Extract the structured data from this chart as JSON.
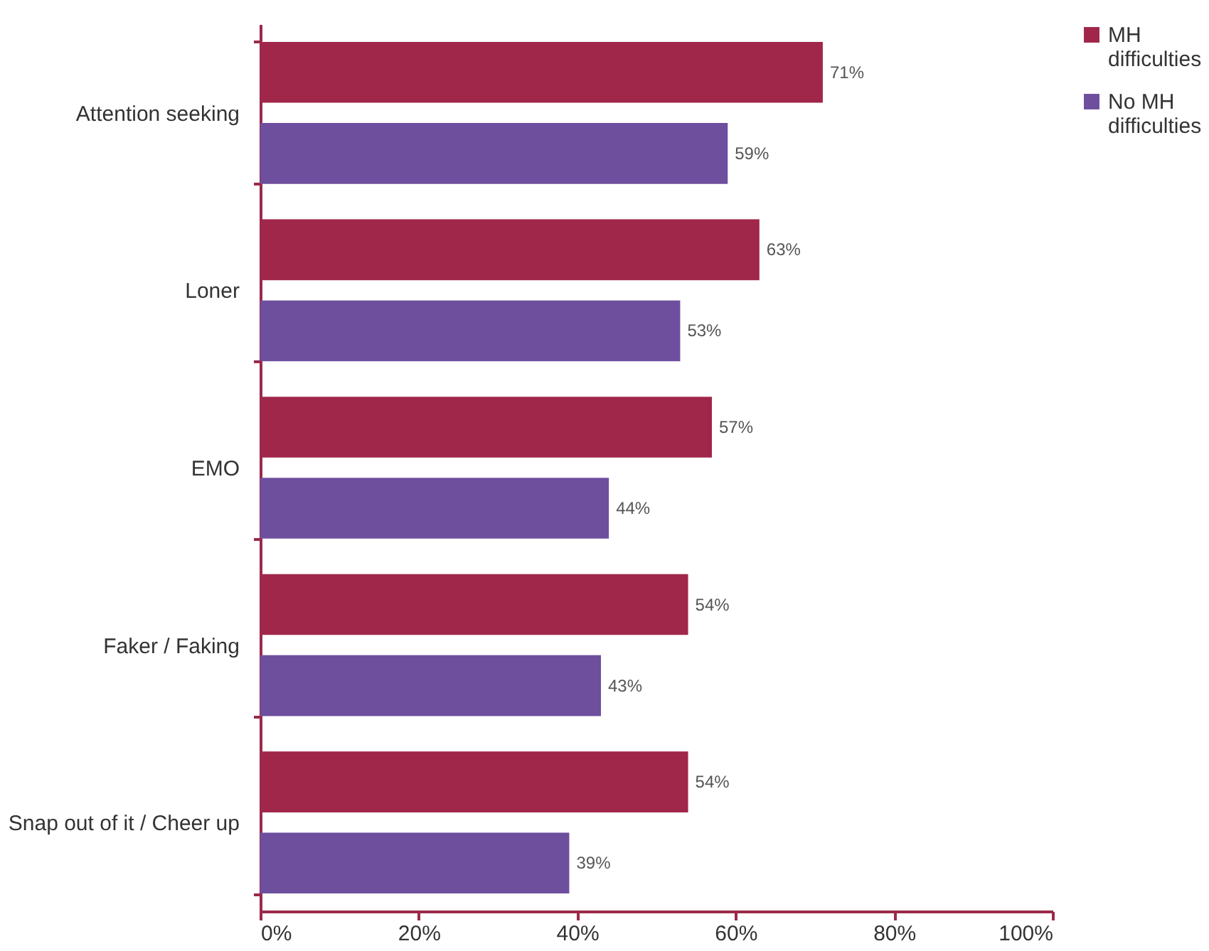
{
  "chart_data": {
    "type": "bar",
    "orientation": "horizontal",
    "categories": [
      "Attention seeking",
      "Loner",
      "EMO",
      "Faker / Faking",
      "Snap out of it / Cheer up"
    ],
    "series": [
      {
        "name": "MH difficulties",
        "color": "#a0264a",
        "values": [
          71,
          63,
          57,
          54,
          54
        ],
        "value_labels": [
          "71%",
          "63%",
          "57%",
          "54%",
          "54%"
        ]
      },
      {
        "name": "No MH difficulties",
        "color": "#6e4f9e",
        "values": [
          59,
          53,
          44,
          43,
          39
        ],
        "value_labels": [
          "59%",
          "53%",
          "44%",
          "43%",
          "39%"
        ]
      }
    ],
    "xlim": [
      0,
      100
    ],
    "xticks": [
      {
        "value": 0,
        "label": "0%"
      },
      {
        "value": 20,
        "label": "20%"
      },
      {
        "value": 40,
        "label": "40%"
      },
      {
        "value": 60,
        "label": "60%"
      },
      {
        "value": 80,
        "label": "80%"
      },
      {
        "value": 100,
        "label": "100%"
      }
    ],
    "grid": false,
    "legend": "right"
  }
}
